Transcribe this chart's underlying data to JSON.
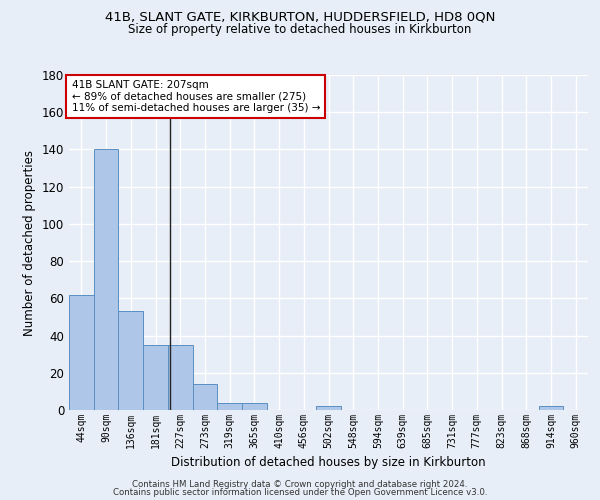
{
  "title1": "41B, SLANT GATE, KIRKBURTON, HUDDERSFIELD, HD8 0QN",
  "title2": "Size of property relative to detached houses in Kirkburton",
  "xlabel": "Distribution of detached houses by size in Kirkburton",
  "ylabel": "Number of detached properties",
  "footnote1": "Contains HM Land Registry data © Crown copyright and database right 2024.",
  "footnote2": "Contains public sector information licensed under the Open Government Licence v3.0.",
  "bin_labels": [
    "44sqm",
    "90sqm",
    "136sqm",
    "181sqm",
    "227sqm",
    "273sqm",
    "319sqm",
    "365sqm",
    "410sqm",
    "456sqm",
    "502sqm",
    "548sqm",
    "594sqm",
    "639sqm",
    "685sqm",
    "731sqm",
    "777sqm",
    "823sqm",
    "868sqm",
    "914sqm",
    "960sqm"
  ],
  "bar_values": [
    62,
    140,
    53,
    35,
    35,
    14,
    4,
    4,
    0,
    0,
    2,
    0,
    0,
    0,
    0,
    0,
    0,
    0,
    0,
    2,
    0
  ],
  "bar_color": "#aec6e8",
  "bar_edge_color": "#5a8fc2",
  "bg_color": "#e8eef7",
  "grid_color": "#ffffff",
  "annotation_line1": "41B SLANT GATE: 207sqm",
  "annotation_line2": "← 89% of detached houses are smaller (275)",
  "annotation_line3": "11% of semi-detached houses are larger (35) →",
  "annotation_box_color": "#ffffff",
  "annotation_box_edge": "#cc0000",
  "ylim": [
    0,
    180
  ],
  "yticks": [
    0,
    20,
    40,
    60,
    80,
    100,
    120,
    140,
    160,
    180
  ]
}
